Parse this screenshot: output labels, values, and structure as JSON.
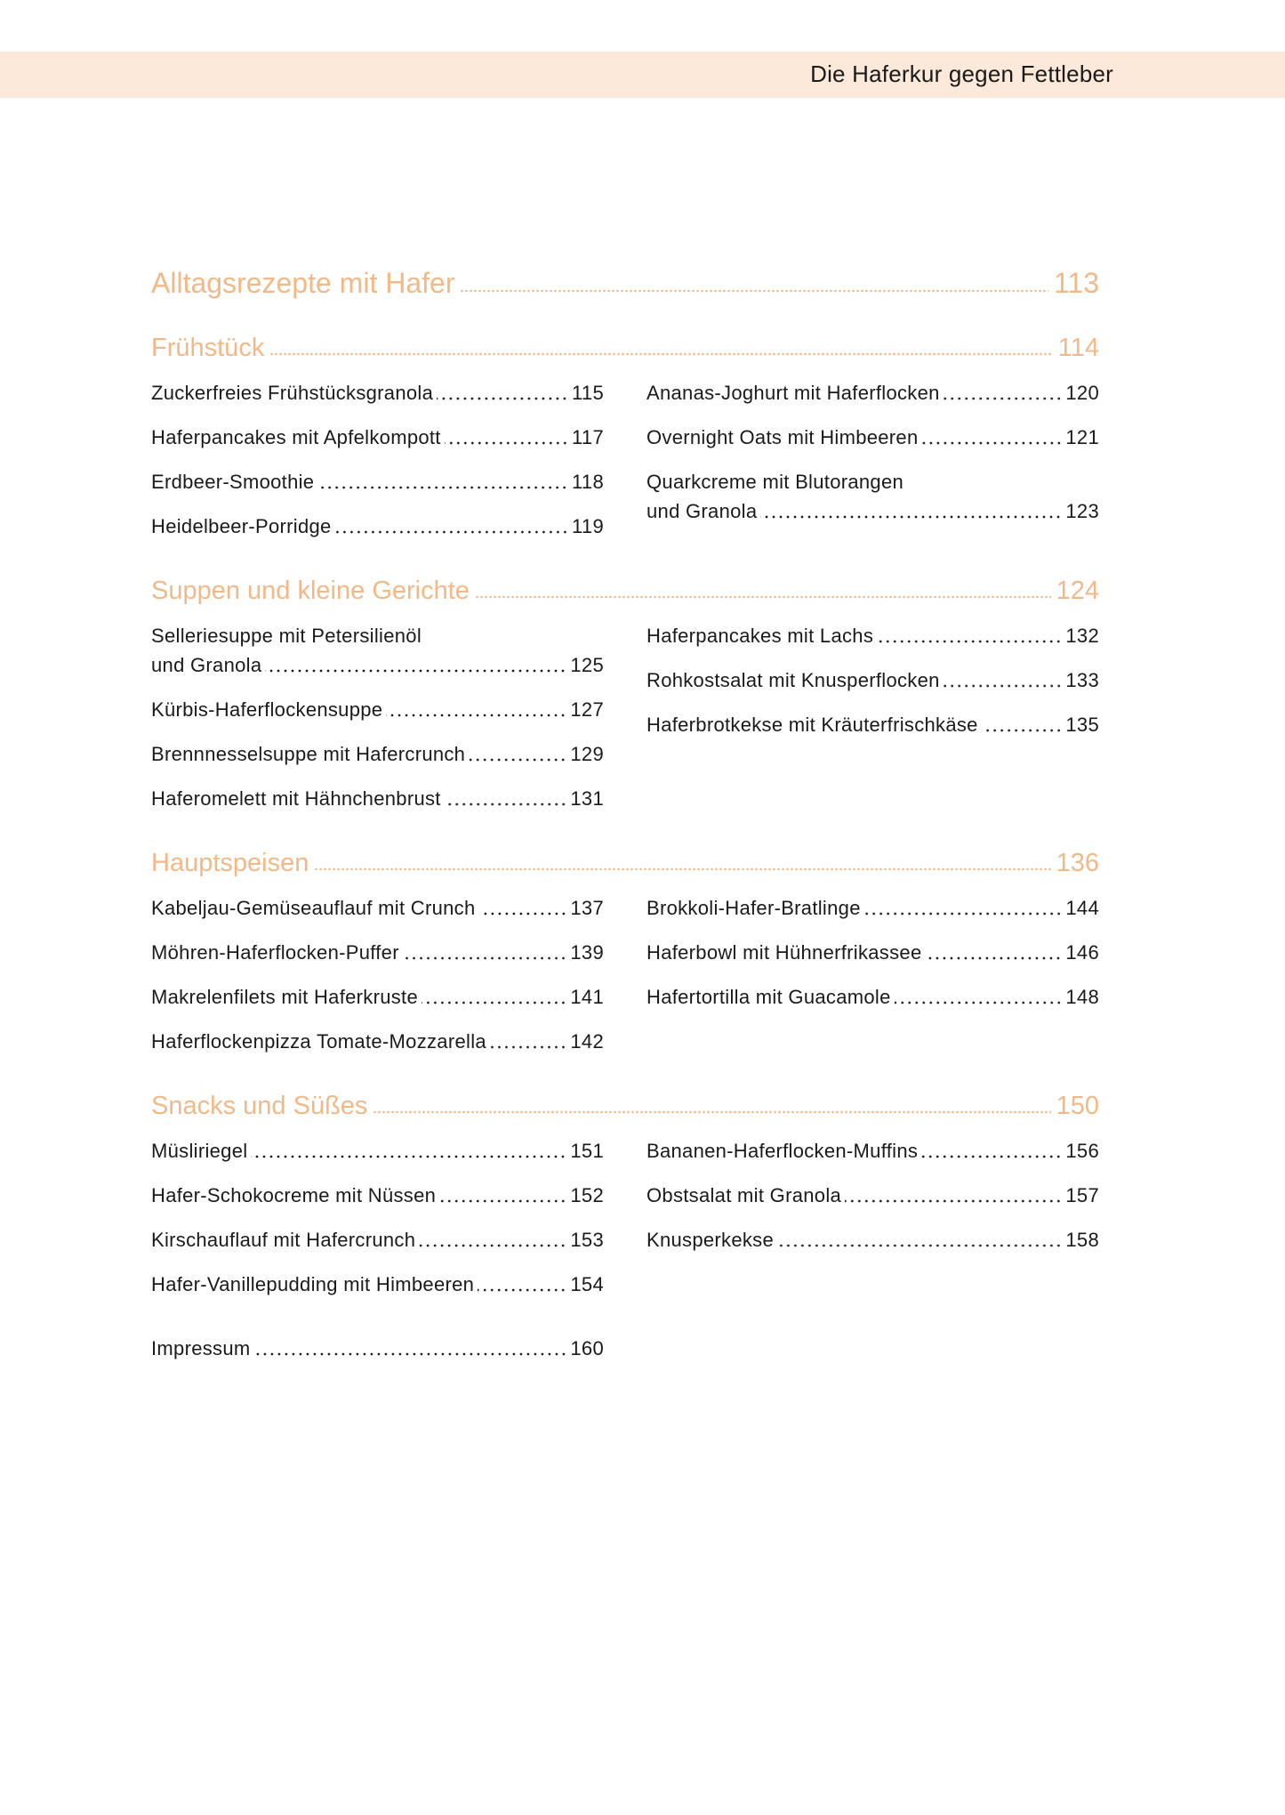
{
  "header": {
    "title": "Die Haferkur gegen Fettleber"
  },
  "colors": {
    "accent": "#f2b988",
    "band": "#fce9d9",
    "text": "#1a1a1a"
  },
  "main_heading": {
    "title": "Alltagsrezepte mit Hafer",
    "page": "113"
  },
  "sections": [
    {
      "title": "Frühstück",
      "page": "114",
      "left": [
        {
          "lines": [
            "Zuckerfreies Frühstücksgranola"
          ],
          "page": "115"
        },
        {
          "lines": [
            "Haferpancakes mit Apfelkompott"
          ],
          "page": "117"
        },
        {
          "lines": [
            "Erdbeer-Smoothie"
          ],
          "page": "118"
        },
        {
          "lines": [
            "Heidelbeer-Porridge"
          ],
          "page": "119"
        }
      ],
      "right": [
        {
          "lines": [
            "Ananas-Joghurt mit Haferflocken"
          ],
          "page": "120"
        },
        {
          "lines": [
            "Overnight Oats mit Himbeeren"
          ],
          "page": "121"
        },
        {
          "lines": [
            "Quarkcreme mit Blutorangen",
            "und Granola"
          ],
          "page": "123"
        }
      ]
    },
    {
      "title": "Suppen und kleine Gerichte",
      "page": "124",
      "left": [
        {
          "lines": [
            "Selleriesuppe mit Petersilienöl",
            "und Granola"
          ],
          "page": "125"
        },
        {
          "lines": [
            "Kürbis-Haferflockensuppe"
          ],
          "page": "127"
        },
        {
          "lines": [
            "Brennnesselsuppe mit Hafercrunch"
          ],
          "page": "129"
        },
        {
          "lines": [
            "Haferomelett mit Hähnchenbrust"
          ],
          "page": "131"
        }
      ],
      "right": [
        {
          "lines": [
            "Haferpancakes mit Lachs"
          ],
          "page": "132"
        },
        {
          "lines": [
            "Rohkostsalat mit Knusperflocken"
          ],
          "page": "133"
        },
        {
          "lines": [
            "Haferbrotkekse mit Kräuterfrischkäse"
          ],
          "page": "135"
        }
      ]
    },
    {
      "title": "Hauptspeisen",
      "page": "136",
      "left": [
        {
          "lines": [
            "Kabeljau-Gemüseauflauf mit Crunch"
          ],
          "page": "137"
        },
        {
          "lines": [
            "Möhren-Haferflocken-Puffer"
          ],
          "page": "139"
        },
        {
          "lines": [
            "Makrelenfilets mit Haferkruste"
          ],
          "page": "141"
        },
        {
          "lines": [
            "Haferflockenpizza Tomate-Mozzarella"
          ],
          "page": "142"
        }
      ],
      "right": [
        {
          "lines": [
            "Brokkoli-Hafer-Bratlinge"
          ],
          "page": "144"
        },
        {
          "lines": [
            "Haferbowl mit Hühnerfrikassee"
          ],
          "page": "146"
        },
        {
          "lines": [
            "Hafertortilla mit Guacamole"
          ],
          "page": "148"
        }
      ]
    },
    {
      "title": "Snacks und Süßes",
      "page": "150",
      "left": [
        {
          "lines": [
            "Müsliriegel"
          ],
          "page": "151"
        },
        {
          "lines": [
            "Hafer-Schokocreme mit Nüssen"
          ],
          "page": "152"
        },
        {
          "lines": [
            "Kirschauflauf mit Hafercrunch"
          ],
          "page": "153"
        },
        {
          "lines": [
            "Hafer-Vanillepudding mit Himbeeren"
          ],
          "page": "154"
        }
      ],
      "right": [
        {
          "lines": [
            "Bananen-Haferflocken-Muffins"
          ],
          "page": "156"
        },
        {
          "lines": [
            "Obstsalat mit Granola"
          ],
          "page": "157"
        },
        {
          "lines": [
            "Knusperkekse"
          ],
          "page": "158"
        }
      ]
    }
  ],
  "impressum": {
    "title": "Impressum",
    "page": "160"
  }
}
